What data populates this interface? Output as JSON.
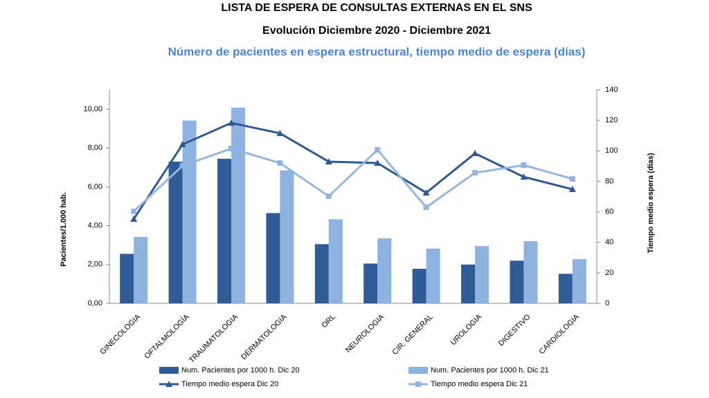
{
  "chart_data": {
    "type": "combo",
    "title": "LISTA DE ESPERA DE CONSULTAS EXTERNAS EN EL SNS",
    "subtitle": "Evolución Diciembre 2020 - Diciembre 2021",
    "caption": "Número de pacientes en espera estructural, tiempo medio de espera  (días)",
    "y_label": "Pacientes/1.000 hab.",
    "y2_label": "Tiempo medio espera (días)",
    "categories": [
      "GINECOLOGIA",
      "OFTALMOLOGÍA",
      "TRAUMATOLOGIA",
      "DERMATOLOGIA",
      "ORL",
      "NEUROLOGIA",
      "CIR. GENERAL",
      "UROLOGIA",
      "DIGESTIVO",
      "CARDIOLOGIA"
    ],
    "ylim": [
      0,
      11
    ],
    "yticks": [
      {
        "value": 0,
        "label": "0,00"
      },
      {
        "value": 2,
        "label": "2,00"
      },
      {
        "value": 4,
        "label": "4,00"
      },
      {
        "value": 6,
        "label": "6,00"
      },
      {
        "value": 8,
        "label": "8,00"
      },
      {
        "value": 10,
        "label": "10,00"
      }
    ],
    "y2lim": [
      0,
      140
    ],
    "y2ticks": [
      0,
      20,
      40,
      60,
      80,
      100,
      120,
      140
    ],
    "series": [
      {
        "name": "Num. Pacientes por 1000 h.  Dic 20",
        "type": "bar",
        "color": "#2f5b97",
        "values": [
          2.55,
          7.3,
          7.45,
          4.65,
          3.05,
          2.05,
          1.78,
          2.0,
          2.2,
          1.52
        ]
      },
      {
        "name": "Num. Pacientes por 1000 h. Dic 21",
        "type": "bar",
        "color": "#8fb3e0",
        "values": [
          3.42,
          9.42,
          10.08,
          6.85,
          4.33,
          3.35,
          2.82,
          2.95,
          3.2,
          2.28
        ]
      },
      {
        "name": "Tiempo medio espera Dic 20",
        "type": "line",
        "marker": "triangle",
        "axis": "y2",
        "color": "#2f5893",
        "values": [
          55.3,
          104.2,
          118.3,
          111.5,
          92.9,
          92,
          72.5,
          98.3,
          82.9,
          74.8
        ]
      },
      {
        "name": "Tiempo medio espera Dic 21",
        "type": "line",
        "marker": "square",
        "axis": "y2",
        "color": "#93b5e3",
        "values": [
          60.3,
          90.2,
          101.5,
          92,
          70.2,
          100.6,
          63,
          85.6,
          90.6,
          81.6
        ]
      }
    ]
  }
}
